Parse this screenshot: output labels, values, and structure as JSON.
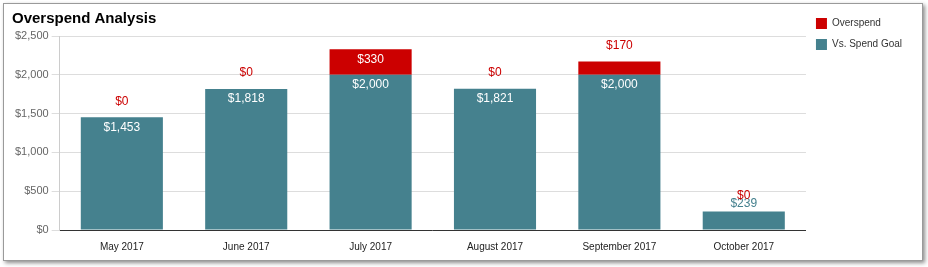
{
  "chart_data": {
    "type": "bar",
    "title": "Overspend Analysis",
    "categories": [
      "May 2017",
      "June 2017",
      "July 2017",
      "August 2017",
      "September 2017",
      "October 2017"
    ],
    "series": [
      {
        "name": "Vs. Spend Goal",
        "color": "#45818e",
        "values": [
          1453,
          1818,
          2000,
          1821,
          2000,
          239
        ],
        "value_labels": [
          "$1,453",
          "$1,818",
          "$2,000",
          "$1,821",
          "$2,000",
          "$239"
        ]
      },
      {
        "name": "Overspend",
        "color": "#cc0000",
        "values": [
          0,
          0,
          330,
          0,
          170,
          0
        ],
        "value_labels": [
          "$0",
          "$0",
          "$330",
          "$0",
          "$170",
          "$0"
        ]
      }
    ],
    "ylim": [
      0,
      2500
    ],
    "yticks": [
      {
        "value": 0,
        "label": "$0"
      },
      {
        "value": 500,
        "label": "$500"
      },
      {
        "value": 1000,
        "label": "$1,000"
      },
      {
        "value": 1500,
        "label": "$1,500"
      },
      {
        "value": 2000,
        "label": "$2,000"
      },
      {
        "value": 2500,
        "label": "$2,500"
      }
    ],
    "stacked": true,
    "grid": true,
    "legend": "right",
    "data_labels": true
  }
}
